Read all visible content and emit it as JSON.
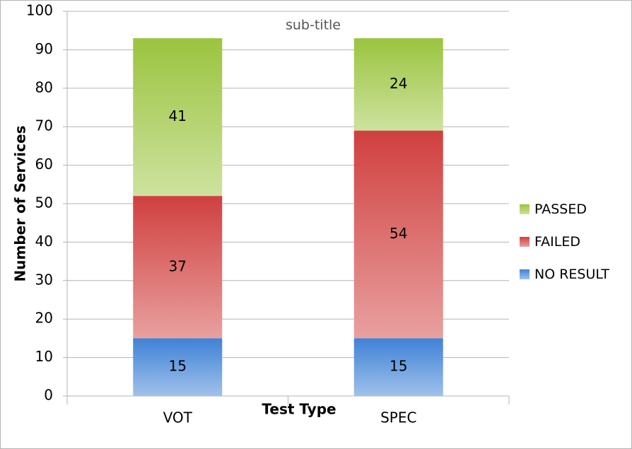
{
  "chart_data": {
    "type": "bar",
    "stacked": true,
    "subtitle": "sub-title",
    "x_label": "Test Type",
    "y_label": "Number of Services",
    "categories": [
      "VOT",
      "SPEC"
    ],
    "series": [
      {
        "name": "NO RESULT",
        "color": "#3f82d6",
        "values": [
          15,
          15
        ]
      },
      {
        "name": "FAILED",
        "color": "#d0403f",
        "values": [
          37,
          54
        ]
      },
      {
        "name": "PASSED",
        "color": "#9bc43f",
        "values": [
          41,
          24
        ]
      }
    ],
    "ylim": [
      0,
      100
    ],
    "yticks": [
      0,
      10,
      20,
      30,
      40,
      50,
      60,
      70,
      80,
      90,
      100
    ],
    "grid": true,
    "legend": "right"
  }
}
